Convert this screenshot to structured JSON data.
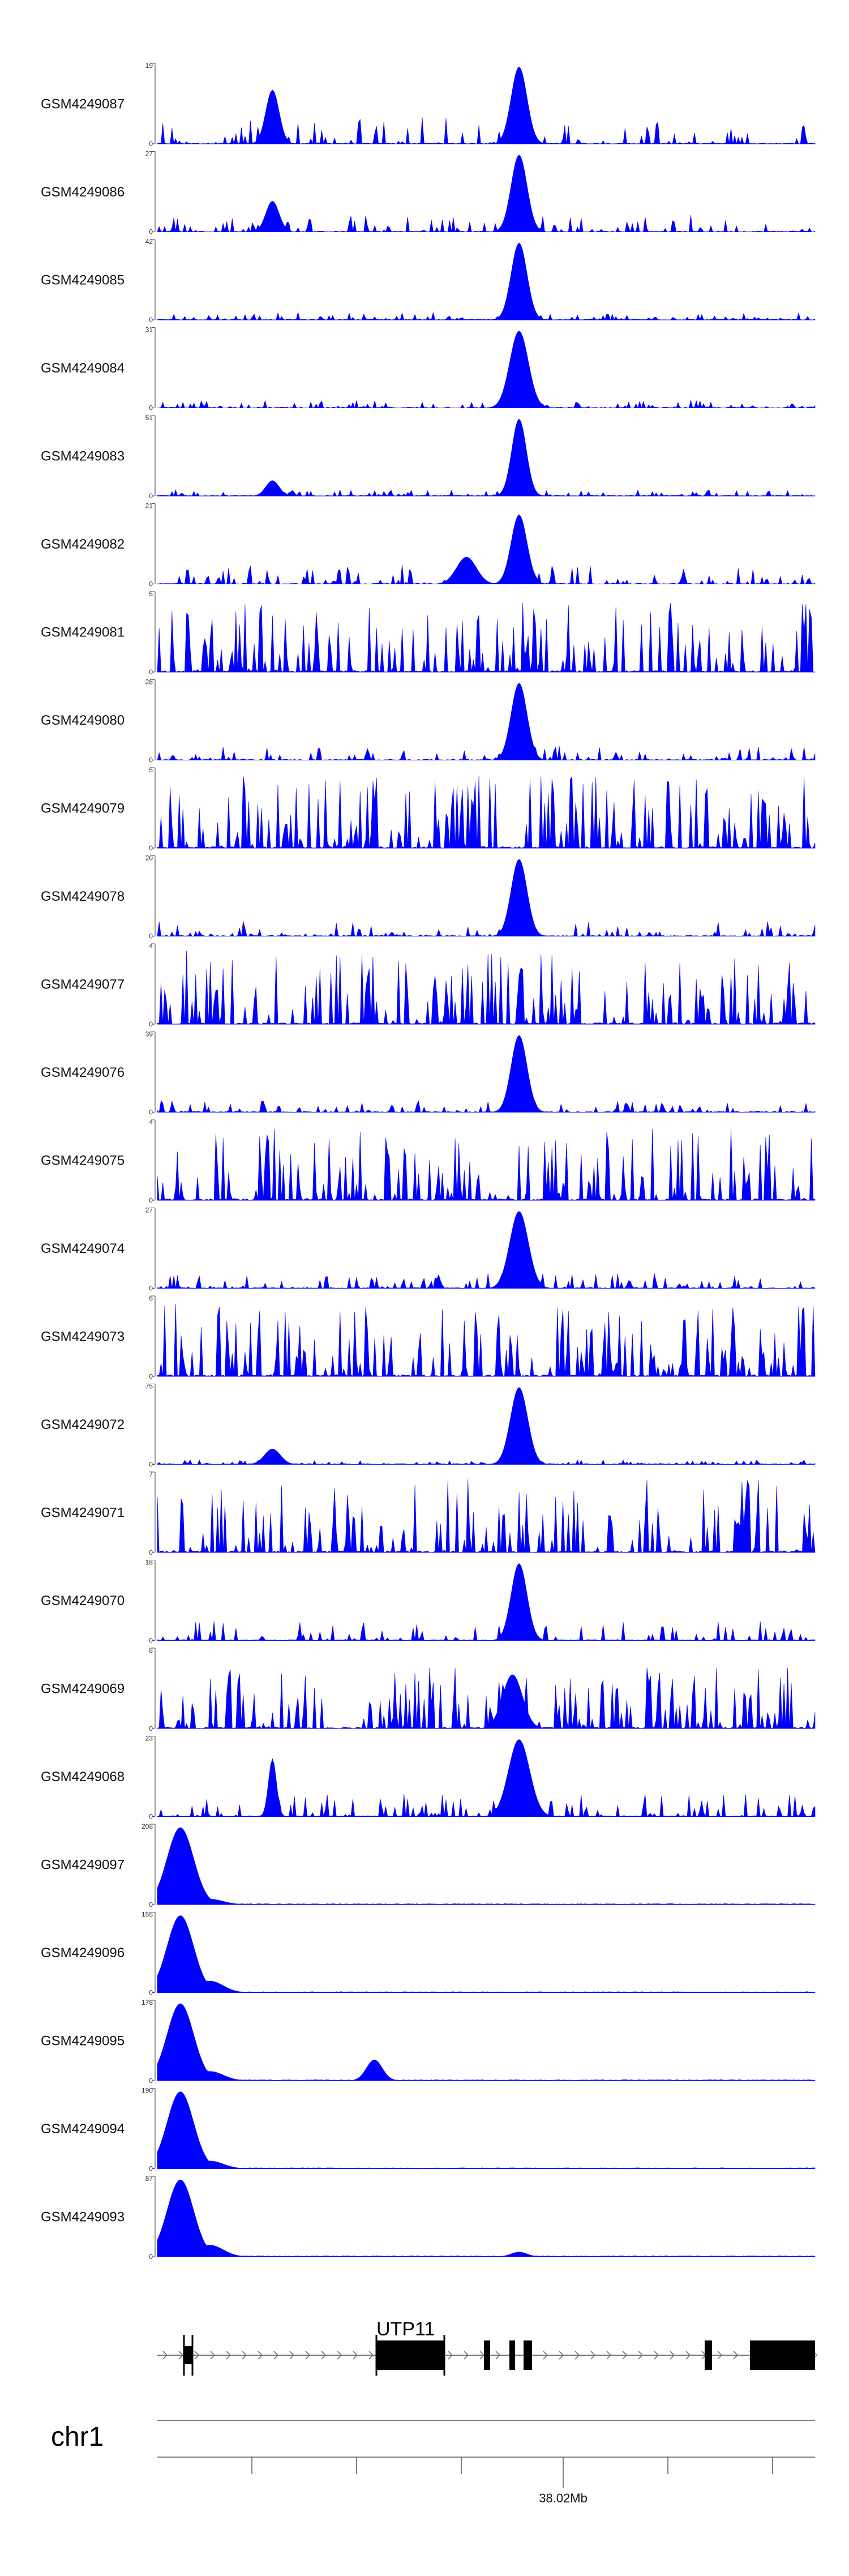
{
  "colors": {
    "signal": "#0000ff",
    "axis": "#555555",
    "gene": "#000000",
    "intron": "#777777"
  },
  "chart_data": {
    "type": "area",
    "title": "",
    "gene": {
      "name": "UTP11"
    },
    "chromosome": "chr1",
    "x_tick": "38.02Mb",
    "tracks": [
      {
        "name": "GSM4249087",
        "ymax": "19"
      },
      {
        "name": "GSM4249086",
        "ymax": "27"
      },
      {
        "name": "GSM4249085",
        "ymax": "42"
      },
      {
        "name": "GSM4249084",
        "ymax": "31"
      },
      {
        "name": "GSM4249083",
        "ymax": "51"
      },
      {
        "name": "GSM4249082",
        "ymax": "21"
      },
      {
        "name": "GSM4249081",
        "ymax": "5"
      },
      {
        "name": "GSM4249080",
        "ymax": "28"
      },
      {
        "name": "GSM4249079",
        "ymax": "5"
      },
      {
        "name": "GSM4249078",
        "ymax": "20"
      },
      {
        "name": "GSM4249077",
        "ymax": "4"
      },
      {
        "name": "GSM4249076",
        "ymax": "39"
      },
      {
        "name": "GSM4249075",
        "ymax": "4"
      },
      {
        "name": "GSM4249074",
        "ymax": "27"
      },
      {
        "name": "GSM4249073",
        "ymax": "6"
      },
      {
        "name": "GSM4249072",
        "ymax": "75"
      },
      {
        "name": "GSM4249071",
        "ymax": "7"
      },
      {
        "name": "GSM4249070",
        "ymax": "18"
      },
      {
        "name": "GSM4249069",
        "ymax": "8"
      },
      {
        "name": "GSM4249068",
        "ymax": "23"
      },
      {
        "name": "GSM4249097",
        "ymax": "208"
      },
      {
        "name": "GSM4249096",
        "ymax": "155"
      },
      {
        "name": "GSM4249095",
        "ymax": "178"
      },
      {
        "name": "GSM4249094",
        "ymax": "190"
      },
      {
        "name": "GSM4249093",
        "ymax": "87"
      }
    ]
  }
}
